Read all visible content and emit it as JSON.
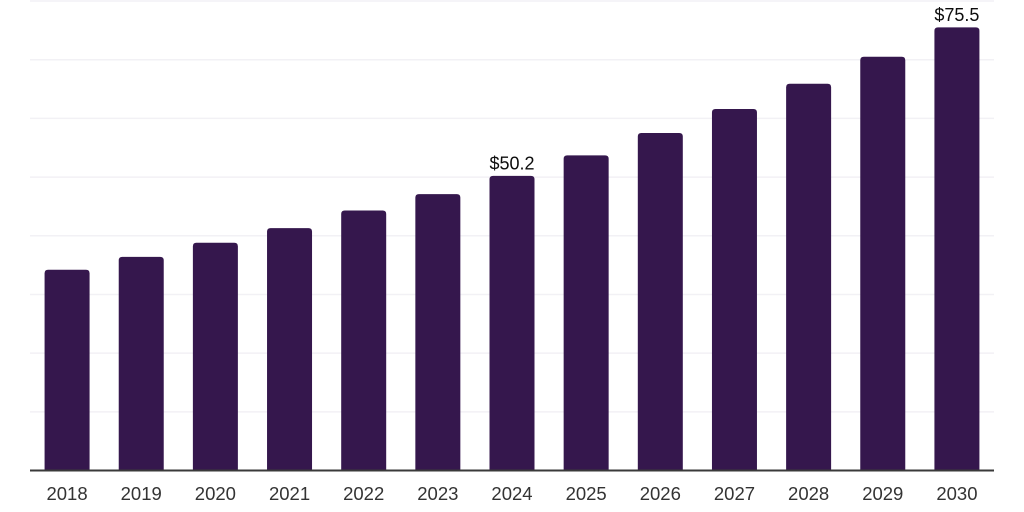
{
  "chart_data": {
    "type": "bar",
    "title": "",
    "xlabel": "",
    "ylabel": "",
    "categories": [
      "2018",
      "2019",
      "2020",
      "2021",
      "2022",
      "2023",
      "2024",
      "2025",
      "2026",
      "2027",
      "2028",
      "2029",
      "2030"
    ],
    "values": [
      34.2,
      36.4,
      38.8,
      41.3,
      44.3,
      47.1,
      50.2,
      53.7,
      57.5,
      61.6,
      65.9,
      70.5,
      75.5
    ],
    "data_labels": {
      "2024": "$50.2",
      "2030": "$75.5"
    },
    "ylim": [
      0,
      80
    ],
    "gridline_step": 10,
    "grid": true,
    "legend_position": "none",
    "colors": {
      "bar": "#35174D",
      "gridline": "#F2F1F5",
      "axis": "#3A3A3A",
      "tick_label": "#333333",
      "data_label": "#0D0D0D",
      "background": "#FFFFFF"
    }
  }
}
